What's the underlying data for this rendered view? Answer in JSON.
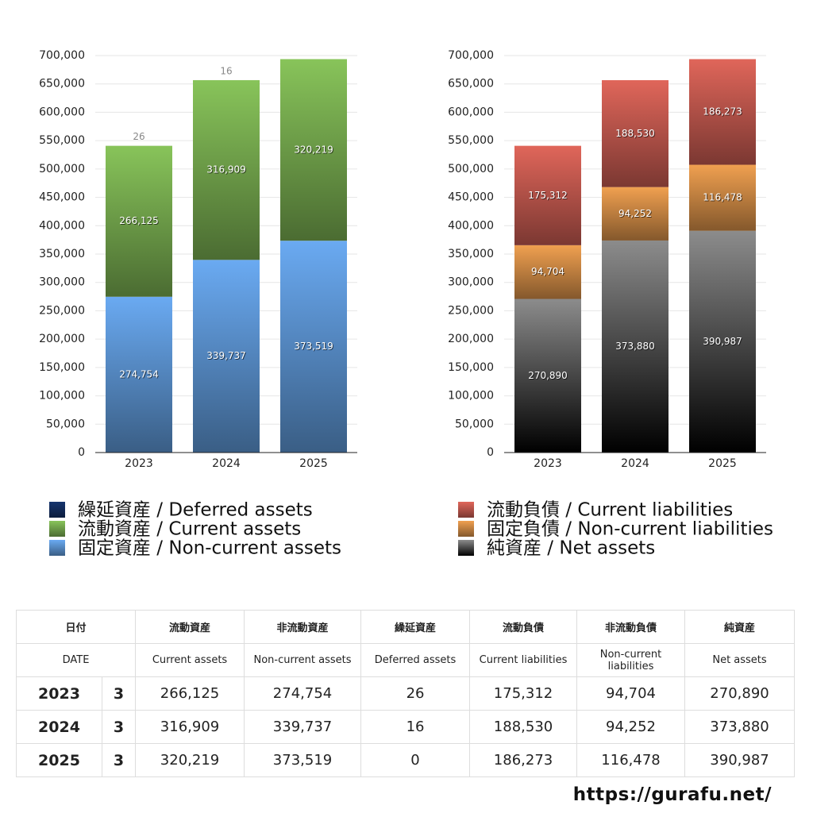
{
  "chart_data": [
    {
      "type": "bar",
      "stacked": true,
      "grid": true,
      "legend": "bottom",
      "categories": [
        "2023",
        "2024",
        "2025"
      ],
      "ylim": [
        0,
        700000
      ],
      "yticks": [
        0,
        {
          "value": 50000,
          "label": "50,000"
        },
        {
          "value": 100000,
          "label": "100,000"
        },
        {
          "value": 150000,
          "label": "150,000"
        },
        {
          "value": 200000,
          "label": "200,000"
        },
        {
          "value": 250000,
          "label": "250,000"
        },
        {
          "value": 300000,
          "label": "300,000"
        },
        {
          "value": 350000,
          "label": "350,000"
        },
        {
          "value": 400000,
          "label": "400,000"
        },
        {
          "value": 450000,
          "label": "450,000"
        },
        {
          "value": 500000,
          "label": "500,000"
        },
        {
          "value": 550000,
          "label": "550,000"
        },
        {
          "value": 600000,
          "label": "600,000"
        },
        {
          "value": 650000,
          "label": "650,000"
        },
        {
          "value": 700000,
          "label": "700,000"
        }
      ],
      "series": [
        {
          "name": "固定資産 / Non-current assets",
          "color": "#6aaaf2",
          "values": [
            274754,
            339737,
            373519
          ],
          "value_labels": [
            "274,754",
            "339,737",
            "373,519"
          ]
        },
        {
          "name": "流動資産 / Current assets",
          "color": "#88c45a",
          "values": [
            266125,
            316909,
            320219
          ],
          "value_labels": [
            "266,125",
            "316,909",
            "320,219"
          ]
        },
        {
          "name": "繰延資産 / Deferred assets",
          "color": "#16356e",
          "values": [
            26,
            16,
            0
          ],
          "value_labels": [
            "26",
            "16",
            null
          ]
        }
      ]
    },
    {
      "type": "bar",
      "stacked": true,
      "grid": true,
      "legend": "bottom",
      "categories": [
        "2023",
        "2024",
        "2025"
      ],
      "ylim": [
        0,
        700000
      ],
      "yticks": [
        0,
        {
          "value": 50000,
          "label": "50,000"
        },
        {
          "value": 100000,
          "label": "100,000"
        },
        {
          "value": 150000,
          "label": "150,000"
        },
        {
          "value": 200000,
          "label": "200,000"
        },
        {
          "value": 250000,
          "label": "250,000"
        },
        {
          "value": 300000,
          "label": "300,000"
        },
        {
          "value": 350000,
          "label": "350,000"
        },
        {
          "value": 400000,
          "label": "400,000"
        },
        {
          "value": 450000,
          "label": "450,000"
        },
        {
          "value": 500000,
          "label": "500,000"
        },
        {
          "value": 550000,
          "label": "550,000"
        },
        {
          "value": 600000,
          "label": "600,000"
        },
        {
          "value": 650000,
          "label": "650,000"
        },
        {
          "value": 700000,
          "label": "700,000"
        }
      ],
      "series": [
        {
          "name": "純資産 / Net assets",
          "color": "#8c8c8c",
          "values": [
            270890,
            373880,
            390987
          ],
          "value_labels": [
            "270,890",
            "373,880",
            "390,987"
          ]
        },
        {
          "name": "固定負債 / Non-current liabilities",
          "color": "#f0a050",
          "values": [
            94704,
            94252,
            116478
          ],
          "value_labels": [
            "94,704",
            "94,252",
            "116,478"
          ]
        },
        {
          "name": "流動負債 / Current liabilities",
          "color": "#e0665a",
          "values": [
            175312,
            188530,
            186273
          ],
          "value_labels": [
            "175,312",
            "188,530",
            "186,273"
          ]
        }
      ]
    }
  ],
  "table": {
    "header": [
      [
        "日付",
        "流動資産",
        "非流動資産",
        "繰延資産",
        "流動負債",
        "非流動負債",
        "純資産"
      ],
      [
        "DATE",
        "Current assets",
        "Non-current assets",
        "Deferred assets",
        "Current liabilities",
        "Non-current liabilities",
        "Net assets"
      ]
    ],
    "rows": [
      [
        "2023",
        "3",
        "266,125",
        "274,754",
        "26",
        "175,312",
        "94,704",
        "270,890"
      ],
      [
        "2024",
        "3",
        "316,909",
        "339,737",
        "16",
        "188,530",
        "94,252",
        "373,880"
      ],
      [
        "2025",
        "3",
        "320,219",
        "373,519",
        "0",
        "186,273",
        "116,478",
        "390,987"
      ]
    ]
  },
  "footer": {
    "url": "https://gurafu.net/"
  }
}
